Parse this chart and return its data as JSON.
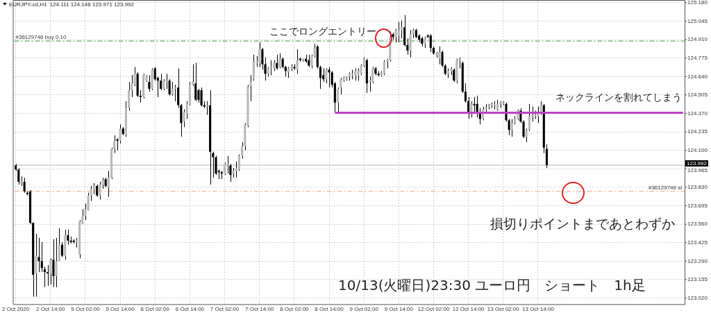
{
  "chart_data": {
    "type": "candlestick",
    "title": "EURJPY-cd,H1  124.111 124.146 123.971 123.992",
    "color": "#000000",
    "categories": [
      "2 Oct 2020",
      null,
      null,
      null,
      null,
      null,
      null,
      null,
      null,
      null,
      null,
      null,
      "2 Oct 14:00",
      null,
      null,
      null,
      null,
      null,
      null,
      null,
      null,
      null,
      null,
      null,
      "5 Oct 02:00",
      null,
      null,
      null,
      null,
      null,
      null,
      null,
      null,
      null,
      null,
      null,
      "5 Oct 14:00",
      null,
      null,
      null,
      null,
      null,
      null,
      null,
      null,
      null,
      null,
      null,
      "6 Oct 02:00",
      null,
      null,
      null,
      null,
      null,
      null,
      null,
      null,
      null,
      null,
      null,
      "6 Oct 14:00",
      null,
      null,
      null,
      null,
      null,
      null,
      null,
      null,
      null,
      null,
      null,
      "7 Oct 02:00",
      null,
      null,
      null,
      null,
      null,
      null,
      null,
      null,
      null,
      null,
      null,
      "7 Oct 14:00",
      null,
      null,
      null,
      null,
      null,
      null,
      null,
      null,
      null,
      null,
      null,
      "8 Oct 02:00",
      null,
      null,
      null,
      null,
      null,
      null,
      null,
      null,
      null,
      null,
      null,
      "8 Oct 14:00",
      null,
      null,
      null,
      null,
      null,
      null,
      null,
      null,
      null,
      null,
      null,
      "9 Oct 02:00",
      null,
      null,
      null,
      null,
      null,
      null,
      null,
      null,
      null,
      null,
      null,
      "9 Oct 14:00",
      null,
      null,
      null,
      null,
      null,
      null,
      null,
      null,
      null,
      null,
      null,
      "12 Oct 02:00",
      null,
      null,
      null,
      null,
      null,
      null,
      null,
      null,
      null,
      null,
      null,
      "12 Oct 14:00",
      null,
      null,
      null,
      null,
      null,
      null,
      null,
      null,
      null,
      null,
      null,
      "13 Oct 02:00",
      null,
      null,
      null,
      null,
      null,
      null,
      null,
      null,
      null,
      null,
      null,
      "13 Oct 14:00",
      null,
      null,
      null,
      null,
      null,
      null,
      null,
      null,
      null,
      null,
      null,
      null,
      null,
      null,
      null,
      null,
      null,
      null,
      null,
      null,
      null,
      null,
      null,
      null,
      null,
      null,
      null,
      null,
      null,
      null,
      null,
      null,
      null,
      null,
      null,
      null,
      null,
      null,
      null,
      null,
      null,
      null,
      null,
      null,
      null,
      null,
      null,
      null,
      null,
      null
    ],
    "ohlc": [
      [
        123.99,
        124.0,
        123.95,
        123.96
      ],
      [
        123.96,
        123.97,
        123.85,
        123.87
      ],
      [
        123.86,
        123.91,
        123.84,
        123.87
      ],
      [
        123.87,
        123.9,
        123.79,
        123.8
      ],
      [
        123.79,
        123.8,
        123.77,
        123.78
      ],
      [
        123.8,
        123.81,
        123.56,
        123.57
      ],
      [
        123.57,
        123.57,
        123.03,
        123.19
      ],
      [
        123.2,
        123.49,
        123.03,
        123.33
      ],
      [
        123.32,
        123.46,
        123.21,
        123.29
      ],
      [
        123.29,
        123.43,
        123.21,
        123.24
      ],
      [
        123.23,
        123.25,
        123.1,
        123.21
      ],
      [
        123.21,
        123.26,
        123.11,
        123.2
      ],
      [
        123.2,
        123.31,
        123.12,
        123.3
      ],
      [
        123.3,
        123.45,
        123.1,
        123.18
      ],
      [
        123.18,
        123.46,
        123.1,
        123.29
      ],
      [
        123.29,
        123.53,
        123.29,
        123.41
      ],
      [
        123.41,
        123.43,
        123.32,
        123.33
      ],
      [
        123.33,
        123.52,
        123.3,
        123.48
      ],
      [
        123.48,
        123.52,
        123.41,
        123.44
      ],
      [
        123.44,
        123.47,
        123.42,
        123.43
      ],
      [
        123.44,
        123.45,
        123.42,
        123.43
      ],
      [
        123.43,
        123.46,
        123.39,
        123.44
      ],
      [
        123.34,
        123.59,
        123.31,
        123.58
      ],
      [
        123.56,
        123.67,
        123.56,
        123.62
      ],
      [
        123.62,
        123.71,
        123.59,
        123.67
      ],
      [
        123.66,
        123.79,
        123.66,
        123.77
      ],
      [
        123.77,
        123.84,
        123.73,
        123.82
      ],
      [
        123.81,
        123.86,
        123.78,
        123.84
      ],
      [
        123.84,
        123.85,
        123.76,
        123.77
      ],
      [
        123.77,
        123.87,
        123.74,
        123.85
      ],
      [
        123.85,
        123.9,
        123.82,
        123.88
      ],
      [
        123.89,
        123.9,
        123.83,
        123.84
      ],
      [
        123.83,
        123.95,
        123.76,
        123.9
      ],
      [
        123.9,
        124.12,
        123.89,
        124.11
      ],
      [
        124.11,
        124.21,
        124.08,
        124.17
      ],
      [
        124.18,
        124.19,
        124.1,
        124.17
      ],
      [
        124.17,
        124.29,
        124.15,
        124.26
      ],
      [
        124.26,
        124.27,
        124.21,
        124.22
      ],
      [
        124.21,
        124.46,
        124.2,
        124.41
      ],
      [
        124.41,
        124.6,
        124.39,
        124.54
      ],
      [
        124.54,
        124.65,
        124.49,
        124.59
      ],
      [
        124.58,
        124.71,
        124.57,
        124.66
      ],
      [
        124.66,
        124.67,
        124.49,
        124.5
      ],
      [
        124.5,
        124.54,
        124.45,
        124.49
      ],
      [
        124.49,
        124.66,
        124.48,
        124.65
      ],
      [
        124.61,
        124.65,
        124.6,
        124.64
      ],
      [
        124.6,
        124.65,
        124.53,
        124.55
      ],
      [
        124.55,
        124.7,
        124.54,
        124.69
      ],
      [
        124.7,
        124.71,
        124.61,
        124.62
      ],
      [
        124.63,
        124.64,
        124.49,
        124.61
      ],
      [
        124.61,
        124.66,
        124.54,
        124.55
      ],
      [
        124.55,
        124.62,
        124.54,
        124.61
      ],
      [
        124.6,
        124.66,
        124.55,
        124.61
      ],
      [
        124.61,
        124.62,
        124.5,
        124.51
      ],
      [
        124.51,
        124.6,
        124.5,
        124.55
      ],
      [
        124.55,
        124.58,
        124.46,
        124.56
      ],
      [
        124.56,
        124.7,
        124.41,
        124.43
      ],
      [
        124.43,
        124.44,
        124.2,
        124.3
      ],
      [
        124.31,
        124.4,
        124.27,
        124.38
      ],
      [
        124.37,
        124.46,
        124.33,
        124.44
      ],
      [
        124.44,
        124.6,
        124.43,
        124.58
      ],
      [
        124.58,
        124.73,
        124.57,
        124.6
      ],
      [
        124.59,
        124.74,
        124.46,
        124.47
      ],
      [
        124.54,
        124.55,
        124.45,
        124.47
      ],
      [
        124.54,
        124.56,
        124.42,
        124.43
      ],
      [
        124.43,
        124.46,
        124.41,
        124.42
      ],
      [
        124.42,
        124.46,
        124.36,
        124.43
      ],
      [
        124.43,
        124.54,
        123.85,
        124.09
      ],
      [
        124.08,
        124.09,
        123.9,
        124.05
      ],
      [
        124.05,
        124.06,
        123.92,
        123.93
      ],
      [
        123.95,
        123.96,
        123.89,
        123.94
      ],
      [
        123.94,
        123.95,
        123.89,
        123.93
      ],
      [
        123.93,
        124.01,
        123.92,
        124.0
      ],
      [
        123.99,
        124.06,
        123.93,
        124.0
      ],
      [
        123.99,
        124.0,
        123.87,
        123.92
      ],
      [
        123.93,
        123.97,
        123.9,
        123.95
      ],
      [
        123.95,
        124.02,
        123.9,
        123.97
      ],
      [
        123.96,
        124.07,
        123.95,
        124.06
      ],
      [
        124.06,
        124.16,
        124.04,
        124.13
      ],
      [
        124.13,
        124.3,
        124.1,
        124.29
      ],
      [
        124.28,
        124.58,
        124.27,
        124.57
      ],
      [
        124.57,
        124.65,
        124.46,
        124.6
      ],
      [
        124.62,
        124.8,
        124.61,
        124.75
      ],
      [
        124.74,
        124.79,
        124.71,
        124.75
      ],
      [
        124.74,
        124.89,
        124.71,
        124.84
      ],
      [
        124.84,
        124.85,
        124.69,
        124.73
      ],
      [
        124.73,
        124.78,
        124.61,
        124.66
      ],
      [
        124.66,
        124.71,
        124.64,
        124.7
      ],
      [
        124.7,
        124.76,
        124.65,
        124.71
      ],
      [
        124.7,
        124.76,
        124.68,
        124.74
      ],
      [
        124.74,
        124.8,
        124.69,
        124.7
      ],
      [
        124.71,
        124.81,
        124.7,
        124.77
      ],
      [
        124.77,
        124.78,
        124.7,
        124.71
      ],
      [
        124.71,
        124.72,
        124.64,
        124.68
      ],
      [
        124.67,
        124.71,
        124.63,
        124.7
      ],
      [
        124.7,
        124.73,
        124.68,
        124.71
      ],
      [
        124.71,
        124.73,
        124.69,
        124.7
      ],
      [
        124.69,
        124.84,
        124.66,
        124.76
      ],
      [
        124.77,
        124.78,
        124.75,
        124.76
      ],
      [
        124.76,
        124.77,
        124.75,
        124.77
      ],
      [
        124.77,
        124.8,
        124.74,
        124.75
      ],
      [
        124.76,
        124.8,
        124.71,
        124.72
      ],
      [
        124.72,
        124.8,
        124.7,
        124.79
      ],
      [
        124.79,
        124.88,
        124.78,
        124.85
      ],
      [
        124.86,
        124.87,
        124.7,
        124.71
      ],
      [
        124.71,
        124.72,
        124.55,
        124.63
      ],
      [
        124.65,
        124.7,
        124.6,
        124.62
      ],
      [
        124.62,
        124.7,
        124.59,
        124.69
      ],
      [
        124.69,
        124.71,
        124.56,
        124.67
      ],
      [
        124.67,
        124.68,
        124.56,
        124.58
      ],
      [
        124.59,
        124.6,
        124.38,
        124.45
      ],
      [
        124.45,
        124.56,
        124.38,
        124.55
      ],
      [
        124.56,
        124.63,
        124.51,
        124.62
      ],
      [
        124.61,
        124.64,
        124.6,
        124.63
      ],
      [
        124.62,
        124.64,
        124.61,
        124.63
      ],
      [
        124.64,
        124.67,
        124.61,
        124.66
      ],
      [
        124.65,
        124.69,
        124.62,
        124.66
      ],
      [
        124.65,
        124.7,
        124.61,
        124.68
      ],
      [
        124.65,
        124.7,
        124.61,
        124.68
      ],
      [
        124.66,
        124.73,
        124.65,
        124.72
      ],
      [
        124.72,
        124.78,
        124.71,
        124.77
      ],
      [
        124.76,
        124.77,
        124.52,
        124.59
      ],
      [
        124.6,
        124.64,
        124.53,
        124.61
      ],
      [
        124.6,
        124.71,
        124.59,
        124.7
      ],
      [
        124.7,
        124.71,
        124.65,
        124.66
      ],
      [
        124.66,
        124.68,
        124.64,
        124.65
      ],
      [
        124.65,
        124.68,
        124.64,
        124.67
      ],
      [
        124.66,
        124.76,
        124.65,
        124.75
      ],
      [
        124.75,
        124.77,
        124.7,
        124.76
      ],
      [
        124.76,
        124.97,
        124.75,
        124.93
      ],
      [
        124.95,
        124.96,
        124.91,
        124.93
      ],
      [
        124.93,
        124.99,
        124.89,
        124.98
      ],
      [
        124.94,
        125.04,
        124.89,
        124.98
      ],
      [
        124.98,
        125.05,
        124.92,
        125.0
      ],
      [
        125.0,
        125.09,
        124.86,
        124.87
      ],
      [
        124.87,
        124.92,
        124.8,
        124.83
      ],
      [
        124.83,
        124.98,
        124.78,
        124.95
      ],
      [
        124.95,
        124.99,
        124.92,
        124.98
      ],
      [
        124.98,
        124.99,
        124.92,
        124.93
      ],
      [
        124.94,
        124.95,
        124.89,
        124.91
      ],
      [
        124.92,
        124.93,
        124.86,
        124.88
      ],
      [
        124.88,
        124.93,
        124.85,
        124.92
      ],
      [
        124.94,
        124.95,
        124.92,
        124.93
      ],
      [
        124.94,
        124.95,
        124.82,
        124.85
      ],
      [
        124.85,
        124.86,
        124.8,
        124.81
      ],
      [
        124.8,
        124.82,
        124.78,
        124.81
      ],
      [
        124.77,
        124.86,
        124.73,
        124.82
      ],
      [
        124.82,
        124.83,
        124.71,
        124.72
      ],
      [
        124.72,
        124.73,
        124.65,
        124.66
      ],
      [
        124.66,
        124.7,
        124.63,
        124.68
      ],
      [
        124.68,
        124.71,
        124.65,
        124.7
      ],
      [
        124.69,
        124.7,
        124.6,
        124.61
      ],
      [
        124.61,
        124.77,
        124.59,
        124.76
      ],
      [
        124.76,
        124.78,
        124.7,
        124.77
      ],
      [
        124.74,
        124.75,
        124.52,
        124.53
      ],
      [
        124.53,
        124.59,
        124.45,
        124.46
      ],
      [
        124.46,
        124.49,
        124.33,
        124.38
      ],
      [
        124.38,
        124.46,
        124.34,
        124.44
      ],
      [
        124.44,
        124.49,
        124.38,
        124.43
      ],
      [
        124.44,
        124.5,
        124.34,
        124.38
      ],
      [
        124.38,
        124.41,
        124.29,
        124.33
      ],
      [
        124.33,
        124.42,
        124.32,
        124.4
      ],
      [
        124.4,
        124.44,
        124.38,
        124.41
      ],
      [
        124.42,
        124.44,
        124.4,
        124.43
      ],
      [
        124.43,
        124.45,
        124.41,
        124.44
      ],
      [
        124.43,
        124.46,
        124.4,
        124.44
      ],
      [
        124.4,
        124.47,
        124.39,
        124.44
      ],
      [
        124.44,
        124.46,
        124.41,
        124.45
      ],
      [
        124.44,
        124.46,
        124.43,
        124.45
      ],
      [
        124.44,
        124.45,
        124.31,
        124.32
      ],
      [
        124.32,
        124.33,
        124.21,
        124.25
      ],
      [
        124.25,
        124.33,
        124.2,
        124.3
      ],
      [
        124.3,
        124.35,
        124.29,
        124.33
      ],
      [
        124.33,
        124.4,
        124.32,
        124.39
      ],
      [
        124.39,
        124.41,
        124.3,
        124.31
      ],
      [
        124.31,
        124.32,
        124.19,
        124.2
      ],
      [
        124.2,
        124.26,
        124.16,
        124.25
      ],
      [
        124.25,
        124.44,
        124.24,
        124.35
      ],
      [
        124.35,
        124.42,
        124.31,
        124.36
      ],
      [
        124.35,
        124.39,
        124.33,
        124.36
      ],
      [
        124.35,
        124.42,
        124.3,
        124.38
      ],
      [
        124.37,
        124.46,
        124.36,
        124.43
      ],
      [
        124.43,
        124.44,
        124.08,
        124.12
      ],
      [
        124.111,
        124.146,
        123.971,
        123.992
      ],
      null,
      null,
      null,
      null,
      null,
      null,
      null,
      null,
      null,
      null,
      null,
      null,
      null,
      null,
      null,
      null,
      null,
      null,
      null,
      null,
      null,
      null,
      null,
      null,
      null,
      null,
      null,
      null,
      null,
      null,
      null,
      null,
      null,
      null,
      null,
      null,
      null,
      null,
      null,
      null,
      null,
      null,
      null,
      null,
      null,
      null,
      null
    ],
    "colors": [
      "#000000",
      "#000000",
      "#b8b8b8",
      "#000000",
      "#000000",
      "#000000",
      "#000000",
      "#b8b8b8",
      "#000000",
      "#000000",
      "#000000",
      "#000000",
      "#b8b8b8",
      "#000000",
      "#b8b8b8",
      "#b8b8b8",
      "#000000",
      "#b8b8b8",
      "#000000",
      "#000000",
      "#000000",
      "#b8b8b8",
      "#b8b8b8",
      "#b8b8b8",
      "#b8b8b8",
      "#b8b8b8",
      "#b8b8b8",
      "#b8b8b8",
      "#000000",
      "#b8b8b8",
      "#b8b8b8",
      "#000000",
      "#b8b8b8",
      "#b8b8b8",
      "#b8b8b8",
      "#000000",
      "#b8b8b8",
      "#000000",
      "#b8b8b8",
      "#b8b8b8",
      "#b8b8b8",
      "#b8b8b8",
      "#000000",
      "#000000",
      "#b8b8b8",
      "#b8b8b8",
      "#000000",
      "#b8b8b8",
      "#000000",
      "#000000",
      "#000000",
      "#b8b8b8",
      "#b8b8b8",
      "#000000",
      "#b8b8b8",
      "#b8b8b8",
      "#000000",
      "#000000",
      "#b8b8b8",
      "#b8b8b8",
      "#b8b8b8",
      "#b8b8b8",
      "#000000",
      "#000000",
      "#000000",
      "#000000",
      "#b8b8b8",
      "#000000",
      "#000000",
      "#000000",
      "#000000",
      "#000000",
      "#b8b8b8",
      "#b8b8b8",
      "#000000",
      "#b8b8b8",
      "#b8b8b8",
      "#b8b8b8",
      "#b8b8b8",
      "#b8b8b8",
      "#b8b8b8",
      "#b8b8b8",
      "#b8b8b8",
      "#b8b8b8",
      "#b8b8b8",
      "#000000",
      "#000000",
      "#b8b8b8",
      "#b8b8b8",
      "#b8b8b8",
      "#000000",
      "#b8b8b8",
      "#000000",
      "#000000",
      "#b8b8b8",
      "#b8b8b8",
      "#000000",
      "#b8b8b8",
      "#000000",
      "#b8b8b8",
      "#000000",
      "#000000",
      "#b8b8b8",
      "#b8b8b8",
      "#000000",
      "#000000",
      "#000000",
      "#b8b8b8",
      "#000000",
      "#000000",
      "#000000",
      "#b8b8b8",
      "#b8b8b8",
      "#b8b8b8",
      "#b8b8b8",
      "#b8b8b8",
      "#b8b8b8",
      "#b8b8b8",
      "#b8b8b8",
      "#b8b8b8",
      "#b8b8b8",
      "#000000",
      "#b8b8b8",
      "#b8b8b8",
      "#000000",
      "#000000",
      "#b8b8b8",
      "#b8b8b8",
      "#b8b8b8",
      "#b8b8b8",
      "#000000",
      "#b8b8b8",
      "#b8b8b8",
      "#b8b8b8",
      "#000000",
      "#000000",
      "#b8b8b8",
      "#b8b8b8",
      "#000000",
      "#000000",
      "#000000",
      "#b8b8b8",
      "#000000",
      "#000000",
      "#000000",
      "#b8b8b8",
      "#b8b8b8",
      "#000000",
      "#000000",
      "#b8b8b8",
      "#b8b8b8",
      "#000000",
      "#b8b8b8",
      "#b8b8b8",
      "#000000",
      "#000000",
      "#000000",
      "#b8b8b8",
      "#000000",
      "#000000",
      "#000000",
      "#b8b8b8",
      "#b8b8b8",
      "#b8b8b8",
      "#b8b8b8",
      "#b8b8b8",
      "#b8b8b8",
      "#b8b8b8",
      "#b8b8b8",
      "#000000",
      "#000000",
      "#b8b8b8",
      "#b8b8b8",
      "#b8b8b8",
      "#000000",
      "#000000",
      "#b8b8b8",
      "#b8b8b8",
      "#b8b8b8",
      "#b8b8b8",
      "#b8b8b8",
      "#b8b8b8",
      "#000000",
      "#000000",
      null,
      null,
      null,
      null,
      null,
      null,
      null,
      null,
      null,
      null,
      null,
      null,
      null,
      null,
      null,
      null,
      null,
      null,
      null,
      null,
      null,
      null,
      null,
      null,
      null,
      null,
      null,
      null,
      null,
      null,
      null,
      null,
      null,
      null,
      null,
      null,
      null,
      null,
      null,
      null,
      null,
      null,
      null,
      null,
      null,
      null,
      null
    ],
    "series": [
      {
        "type": "line",
        "color": "#c040c8",
        "values": [
          null,
          null,
          null,
          null,
          null,
          null,
          null,
          null,
          null,
          null,
          null,
          null,
          null,
          null,
          null,
          null,
          null,
          null,
          null,
          null,
          null,
          null,
          null,
          null,
          null,
          null,
          null,
          null,
          null,
          null,
          null,
          null,
          null,
          null,
          null,
          null,
          null,
          null,
          null,
          null,
          null,
          null,
          null,
          null,
          null,
          null,
          null,
          null,
          null,
          null,
          null,
          null,
          null,
          null,
          null,
          null,
          null,
          null,
          null,
          null,
          null,
          null,
          null,
          null,
          null,
          null,
          null,
          null,
          null,
          null,
          null,
          null,
          null,
          null,
          null,
          null,
          null,
          null,
          null,
          null,
          null,
          null,
          null,
          null,
          null,
          null,
          null,
          null,
          null,
          null,
          null,
          null,
          null,
          null,
          null,
          null,
          null,
          null,
          null,
          null,
          null,
          null,
          null,
          null,
          null,
          null,
          null,
          null,
          null,
          null,
          124.375,
          124.375,
          124.375,
          124.375,
          124.375,
          124.375,
          124.375,
          124.375,
          124.375,
          124.375,
          124.375,
          124.375,
          124.375,
          124.375,
          124.375,
          124.375,
          124.375,
          124.375,
          124.375,
          124.375,
          124.375,
          124.375,
          124.375,
          124.375,
          124.375,
          124.375,
          124.375,
          124.375,
          124.375,
          124.375,
          124.375,
          124.375,
          124.375,
          124.375,
          124.375,
          124.375,
          124.375,
          124.375,
          124.375,
          124.375,
          124.375,
          124.375,
          124.375,
          124.375,
          124.375,
          124.375,
          124.375,
          124.375,
          124.375,
          124.375,
          124.375,
          124.375,
          124.375,
          124.375,
          124.375,
          124.375,
          124.375,
          124.375,
          124.375,
          124.375,
          124.375,
          124.375,
          124.375,
          124.375,
          124.375,
          124.375,
          124.375,
          124.375,
          124.375,
          124.375,
          124.375,
          124.375,
          124.375,
          124.375,
          124.375,
          124.375,
          124.375,
          124.375,
          124.375,
          124.375,
          124.375,
          124.375,
          124.375,
          124.375,
          124.375,
          124.375,
          124.375,
          124.375,
          124.375,
          124.375,
          124.375,
          124.375,
          124.375,
          124.375,
          124.375,
          124.375,
          124.375,
          124.375,
          124.375,
          124.375,
          124.375,
          124.375,
          124.375,
          124.375,
          124.375,
          124.375,
          124.375,
          124.375,
          124.375,
          124.375,
          124.375,
          124.375,
          124.375,
          124.375,
          124.375,
          124.375,
          124.375,
          124.375,
          124.375,
          124.375,
          124.375
        ]
      }
    ],
    "ylim": [
      122.975,
      125.2
    ],
    "yticks": [
      {
        "value": 123.02,
        "label": "123.020"
      },
      {
        "value": 123.155,
        "label": "123.155"
      },
      {
        "value": 123.29,
        "label": "123.290"
      },
      {
        "value": 123.425,
        "label": "123.425"
      },
      {
        "value": 123.56,
        "label": "123.560"
      },
      {
        "value": 123.695,
        "label": "123.695"
      },
      {
        "value": 123.83,
        "label": "123.830"
      },
      {
        "value": 123.965,
        "label": "123.965"
      },
      {
        "value": 124.1,
        "label": "124.100"
      },
      {
        "value": 124.235,
        "label": "124.235"
      },
      {
        "value": 124.37,
        "label": "124.370"
      },
      {
        "value": 124.505,
        "label": "124.505"
      },
      {
        "value": 124.64,
        "label": "124.640"
      },
      {
        "value": 124.775,
        "label": "124.775"
      },
      {
        "value": 124.91,
        "label": "124.910"
      },
      {
        "value": 125.045,
        "label": "125.045"
      },
      {
        "value": 125.18,
        "label": "125.180"
      }
    ],
    "ref_lines": [
      {
        "axis": "y",
        "value": 124.9,
        "label": "#36129746 buy 0.10",
        "color": "#3c9a3c",
        "line_style": "dashed"
      },
      {
        "axis": "y",
        "value": 123.8,
        "label": "#36129746 sl",
        "color": "#f0a080",
        "line_style": "dashed"
      },
      {
        "axis": "y",
        "value": 123.992,
        "label": "123.992",
        "color": "#d8d8d8",
        "line_style": "solid"
      }
    ],
    "annotations": [
      "ここでロングエントリー",
      "ネックラインを割れてしまう",
      "損切りポイントまであとわずか",
      "10/13(火曜日)23:30 ユーロ円　ショート　1h足"
    ],
    "grid": true,
    "legend": false
  }
}
